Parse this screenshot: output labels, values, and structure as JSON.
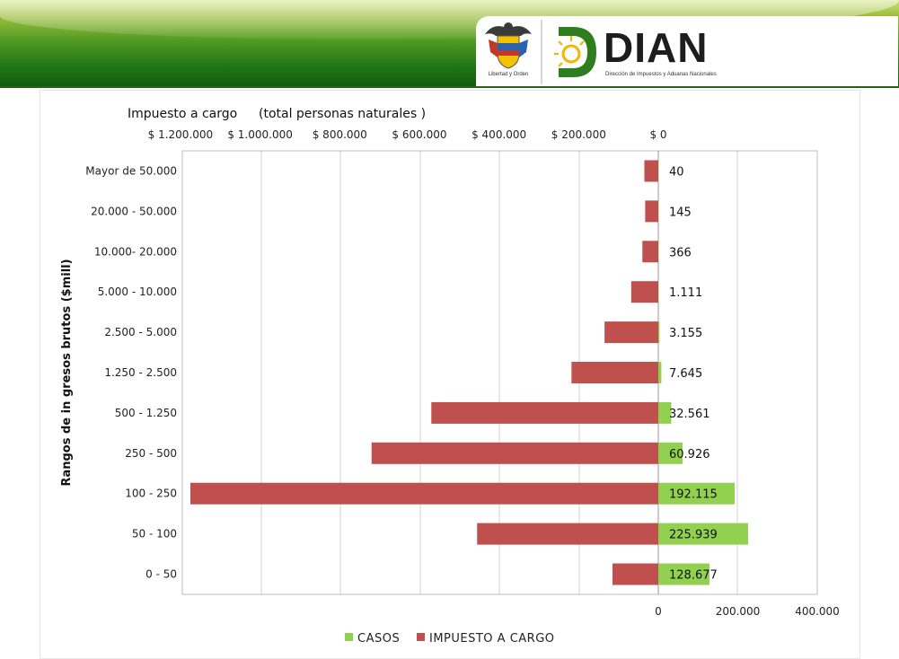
{
  "header": {
    "coat_caption": "Libertad y Orden",
    "logo_word": "DIAN",
    "logo_subtitle": "Dirección de Impuestos y Aduanas Nacionales",
    "colors": {
      "green_dark": "#135c10",
      "green_light": "#9cbf3c",
      "dian_green": "#2e7d1e",
      "dian_yellow": "#f2b600"
    }
  },
  "chart_data": {
    "type": "bar",
    "orientation": "horizontal",
    "title_left": "Impuesto a cargo",
    "title_right": "(total personas naturales )",
    "ylabel": "Rangos de in gresos brutos  ($mill)",
    "categories": [
      "0 - 50",
      "50 - 100",
      "100 - 250",
      "250 - 500",
      "500 - 1.250",
      "1.250 - 2.500",
      "2.500 - 5.000",
      "5.000 - 10.000",
      "10.000- 20.000",
      "20.000 - 50.000",
      "Mayor de 50.000"
    ],
    "series": [
      {
        "name": "CASOS",
        "color": "#92d050",
        "axis": "bottom",
        "values": [
          128677,
          225939,
          192115,
          60926,
          32561,
          7645,
          3155,
          1111,
          366,
          145,
          40
        ],
        "labels": [
          "128.677",
          "225.939",
          "192.115",
          "60.926",
          "32.561",
          "7.645",
          "3.155",
          "1.111",
          "366",
          "145",
          "40"
        ]
      },
      {
        "name": "IMPUESTO A CARGO",
        "color": "#c0504d",
        "axis": "top",
        "values": [
          115000,
          455000,
          1175000,
          720000,
          570000,
          218000,
          135000,
          68000,
          40000,
          33000,
          35000
        ]
      }
    ],
    "top_axis": {
      "ticks": [
        0,
        200000,
        400000,
        600000,
        800000,
        1000000,
        1200000
      ],
      "labels": [
        "$ 0",
        "$ 200.000",
        "$ 400.000",
        "$ 600.000",
        "$ 800.000",
        "$ 1.000.000",
        "$ 1.200.000"
      ],
      "reversed": true
    },
    "bottom_axis": {
      "ticks": [
        0,
        200000,
        400000
      ],
      "labels": [
        "0",
        "200.000",
        "400.000"
      ]
    },
    "grid": true,
    "legend_position": "bottom"
  }
}
